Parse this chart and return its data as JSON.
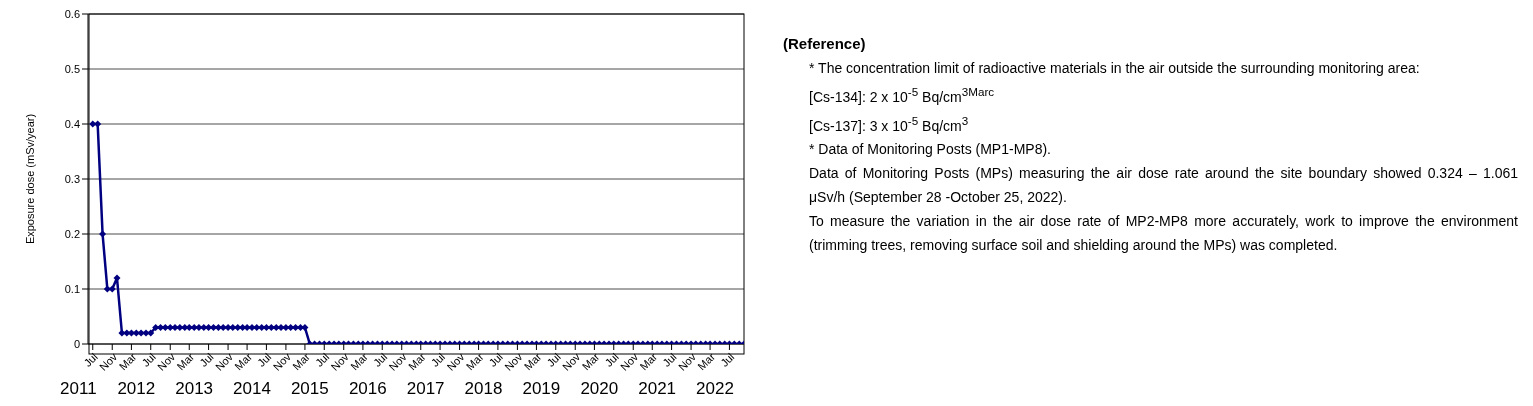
{
  "chart_data": {
    "type": "line",
    "ylabel": "Exposure dose (mSv/year)",
    "x": [
      "2011-07",
      "2011-08",
      "2011-09",
      "2011-10",
      "2011-11",
      "2011-12",
      "2012-01",
      "2012-02",
      "2012-03",
      "2012-04",
      "2012-05",
      "2012-06",
      "2012-07",
      "2012-08",
      "2012-09",
      "2012-10",
      "2012-11",
      "2012-12",
      "2013-01",
      "2013-02",
      "2013-03",
      "2013-04",
      "2013-05",
      "2013-06",
      "2013-07",
      "2013-08",
      "2013-09",
      "2013-10",
      "2013-11",
      "2013-12",
      "2014-01",
      "2014-02",
      "2014-03",
      "2014-04",
      "2014-05",
      "2014-06",
      "2014-07",
      "2014-08",
      "2014-09",
      "2014-10",
      "2014-11",
      "2014-12",
      "2015-01",
      "2015-02",
      "2015-03",
      "2015-04",
      "2015-05",
      "2015-06",
      "2015-07",
      "2015-08",
      "2015-09",
      "2015-10",
      "2015-11",
      "2015-12",
      "2016-01",
      "2016-02",
      "2016-03",
      "2016-04",
      "2016-05",
      "2016-06",
      "2016-07",
      "2016-08",
      "2016-09",
      "2016-10",
      "2016-11",
      "2016-12",
      "2017-01",
      "2017-02",
      "2017-03",
      "2017-04",
      "2017-05",
      "2017-06",
      "2017-07",
      "2017-08",
      "2017-09",
      "2017-10",
      "2017-11",
      "2017-12",
      "2018-01",
      "2018-02",
      "2018-03",
      "2018-04",
      "2018-05",
      "2018-06",
      "2018-07",
      "2018-08",
      "2018-09",
      "2018-10",
      "2018-11",
      "2018-12",
      "2019-01",
      "2019-02",
      "2019-03",
      "2019-04",
      "2019-05",
      "2019-06",
      "2019-07",
      "2019-08",
      "2019-09",
      "2019-10",
      "2019-11",
      "2019-12",
      "2020-01",
      "2020-02",
      "2020-03",
      "2020-04",
      "2020-05",
      "2020-06",
      "2020-07",
      "2020-08",
      "2020-09",
      "2020-10",
      "2020-11",
      "2020-12",
      "2021-01",
      "2021-02",
      "2021-03",
      "2021-04",
      "2021-05",
      "2021-06",
      "2021-07",
      "2021-08",
      "2021-09",
      "2021-10",
      "2021-11",
      "2021-12",
      "2022-01",
      "2022-02",
      "2022-03",
      "2022-04",
      "2022-05",
      "2022-06",
      "2022-07",
      "2022-08",
      "2022-09",
      "2022-10"
    ],
    "series": [
      {
        "color": "#000080",
        "values": [
          0.4,
          0.4,
          0.2,
          0.1,
          0.1,
          0.12,
          0.02,
          0.02,
          0.02,
          0.02,
          0.02,
          0.02,
          0.02,
          0.03,
          0.03,
          0.03,
          0.03,
          0.03,
          0.03,
          0.03,
          0.03,
          0.03,
          0.03,
          0.03,
          0.03,
          0.03,
          0.03,
          0.03,
          0.03,
          0.03,
          0.03,
          0.03,
          0.03,
          0.03,
          0.03,
          0.03,
          0.03,
          0.03,
          0.03,
          0.03,
          0.03,
          0.03,
          0.03,
          0.03,
          0.03,
          0,
          0,
          0,
          0,
          0,
          0,
          0,
          0,
          0,
          0,
          0,
          0,
          0,
          0,
          0,
          0,
          0,
          0,
          0,
          0,
          0,
          0,
          0,
          0,
          0,
          0,
          0,
          0,
          0,
          0,
          0,
          0,
          0,
          0,
          0,
          0,
          0,
          0,
          0,
          0,
          0,
          0,
          0,
          0,
          0,
          0,
          0,
          0,
          0,
          0,
          0,
          0,
          0,
          0,
          0,
          0,
          0,
          0,
          0,
          0,
          0,
          0,
          0,
          0,
          0,
          0,
          0,
          0,
          0,
          0,
          0,
          0,
          0,
          0,
          0,
          0,
          0,
          0,
          0,
          0,
          0,
          0,
          0,
          0,
          0,
          0,
          0,
          0,
          0,
          0,
          0
        ]
      }
    ],
    "xlim": [
      "2011-06",
      "2022-10"
    ],
    "xticks": [
      {
        "value": "2011-07",
        "label": "Jul"
      },
      {
        "value": "2011-11",
        "label": "Nov"
      },
      {
        "value": "2012-03",
        "label": "Mar"
      },
      {
        "value": "2012-07",
        "label": "Jul"
      },
      {
        "value": "2012-11",
        "label": "Nov"
      },
      {
        "value": "2013-03",
        "label": "Mar"
      },
      {
        "value": "2013-07",
        "label": "Jul"
      },
      {
        "value": "2013-11",
        "label": "Nov"
      },
      {
        "value": "2014-03",
        "label": "Mar"
      },
      {
        "value": "2014-07",
        "label": "Jul"
      },
      {
        "value": "2014-11",
        "label": "Nov"
      },
      {
        "value": "2015-03",
        "label": "Mar"
      },
      {
        "value": "2015-07",
        "label": "Jul"
      },
      {
        "value": "2015-11",
        "label": "Nov"
      },
      {
        "value": "2016-03",
        "label": "Mar"
      },
      {
        "value": "2016-07",
        "label": "Jul"
      },
      {
        "value": "2016-11",
        "label": "Nov"
      },
      {
        "value": "2017-03",
        "label": "Mar"
      },
      {
        "value": "2017-07",
        "label": "Jul"
      },
      {
        "value": "2017-11",
        "label": "Nov"
      },
      {
        "value": "2018-03",
        "label": "Mar"
      },
      {
        "value": "2018-07",
        "label": "Jul"
      },
      {
        "value": "2018-11",
        "label": "Nov"
      },
      {
        "value": "2019-03",
        "label": "Mar"
      },
      {
        "value": "2019-07",
        "label": "Jul"
      },
      {
        "value": "2019-11",
        "label": "Nov"
      },
      {
        "value": "2020-03",
        "label": "Mar"
      },
      {
        "value": "2020-07",
        "label": "Jul"
      },
      {
        "value": "2020-11",
        "label": "Nov"
      },
      {
        "value": "2021-03",
        "label": "Mar"
      },
      {
        "value": "2021-07",
        "label": "Jul"
      },
      {
        "value": "2021-11",
        "label": "Nov"
      },
      {
        "value": "2022-03",
        "label": "Mar"
      },
      {
        "value": "2022-07",
        "label": "Jul"
      }
    ],
    "ylim": [
      0,
      0.6
    ],
    "yticks": [
      0,
      0.1,
      0.2,
      0.3,
      0.4,
      0.5,
      0.6
    ],
    "grid": "y",
    "marker": "diamond",
    "line_style": "solid",
    "annotations": [
      "2011",
      "2012",
      "2013",
      "2014",
      "2015",
      "2016",
      "2017",
      "2018",
      "2019",
      "2020",
      "2021",
      "2022",
      "(Reference)",
      "* The concentration limit of radioactive materials in the air outside the surrounding monitoring area:",
      "[Cs-134]: 2 x 10$^{-5}$ Bq/cm$^{3Marc}$",
      "[Cs-137]: 3 x 10$^{-5}$ Bq/cm$^{3}$",
      "* Data of Monitoring Posts (MP1-MP8).",
      "Data of Monitoring Posts (MPs) measuring the air dose rate around the site boundary showed 0.324 – 1.061 μSv/h (September 28 -October 25, 2022).",
      "To measure the variation in the air dose rate of MP2-MP8 more accurately, work to improve the environment (trimming trees, removing surface soil and shielding around the MPs) was completed."
    ]
  }
}
